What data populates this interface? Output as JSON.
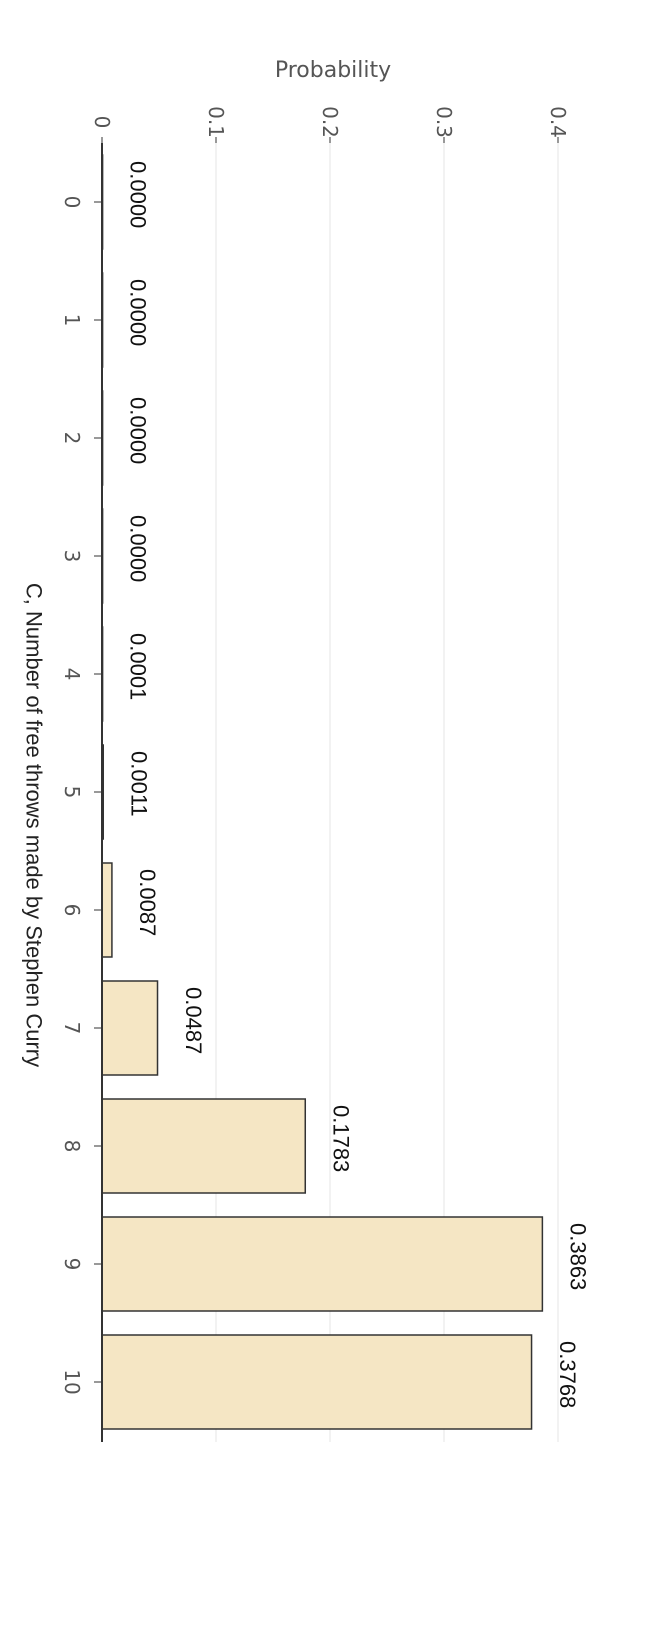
{
  "chart_data": {
    "type": "bar",
    "orientation": "rotated-90-clockwise",
    "categories": [
      "0",
      "1",
      "2",
      "3",
      "4",
      "5",
      "6",
      "7",
      "8",
      "9",
      "10"
    ],
    "values": [
      0.0,
      0.0,
      0.0,
      0.0,
      0.0001,
      0.0011,
      0.0087,
      0.0487,
      0.1783,
      0.3863,
      0.3768
    ],
    "value_labels": [
      "0.0000",
      "0.0000",
      "0.0000",
      "0.0000",
      "0.0001",
      "0.0011",
      "0.0087",
      "0.0487",
      "0.1783",
      "0.3863",
      "0.3768"
    ],
    "title": "",
    "xlabel": "C, Number of free throws made by Stephen Curry",
    "ylabel": "Probability",
    "ylim": [
      0,
      0.4
    ],
    "yticks": [
      0,
      0.1,
      0.2,
      0.3,
      0.4
    ],
    "ytick_labels": [
      "0",
      "0.1",
      "0.2",
      "0.3",
      "0.4"
    ],
    "grid": true,
    "legend": "none",
    "colors": {
      "bar_fill": "#f5e6c4",
      "bar_stroke": "#333333",
      "grid": "#e6e6e6",
      "axis": "#333333"
    }
  }
}
